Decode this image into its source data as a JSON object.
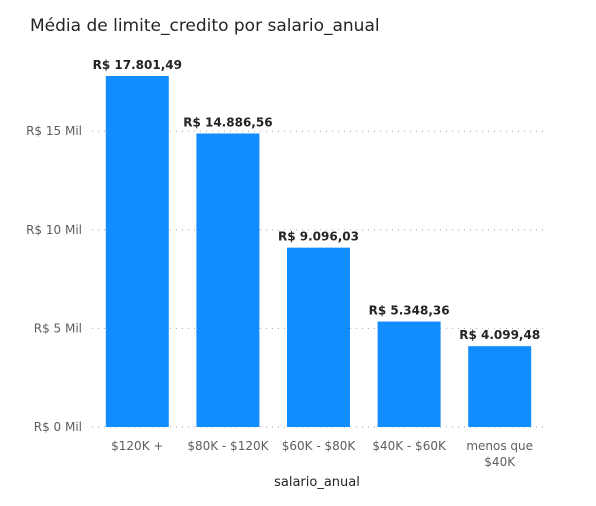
{
  "chart_data": {
    "type": "bar",
    "title": "Média de limite_credito por salario_anual",
    "xlabel": "salario_anual",
    "ylabel": "",
    "categories": [
      "$120K +",
      "$80K - $120K",
      "$60K - $80K",
      "$40K - $60K",
      "menos que $40K"
    ],
    "values": [
      17801.49,
      14886.56,
      9096.03,
      5348.36,
      4099.48
    ],
    "data_labels": [
      "R$ 17.801,49",
      "R$ 14.886,56",
      "R$ 9.096,03",
      "R$ 5.348,36",
      "R$ 4.099,48"
    ],
    "yticks": [
      0,
      5000,
      10000,
      15000
    ],
    "ytick_labels": [
      "R$ 0 Mil",
      "R$ 5 Mil",
      "R$ 10 Mil",
      "R$ 15 Mil"
    ],
    "ylim": [
      0,
      17801.49
    ],
    "grid": true,
    "legend": "none",
    "bar_color": "#118dff"
  }
}
